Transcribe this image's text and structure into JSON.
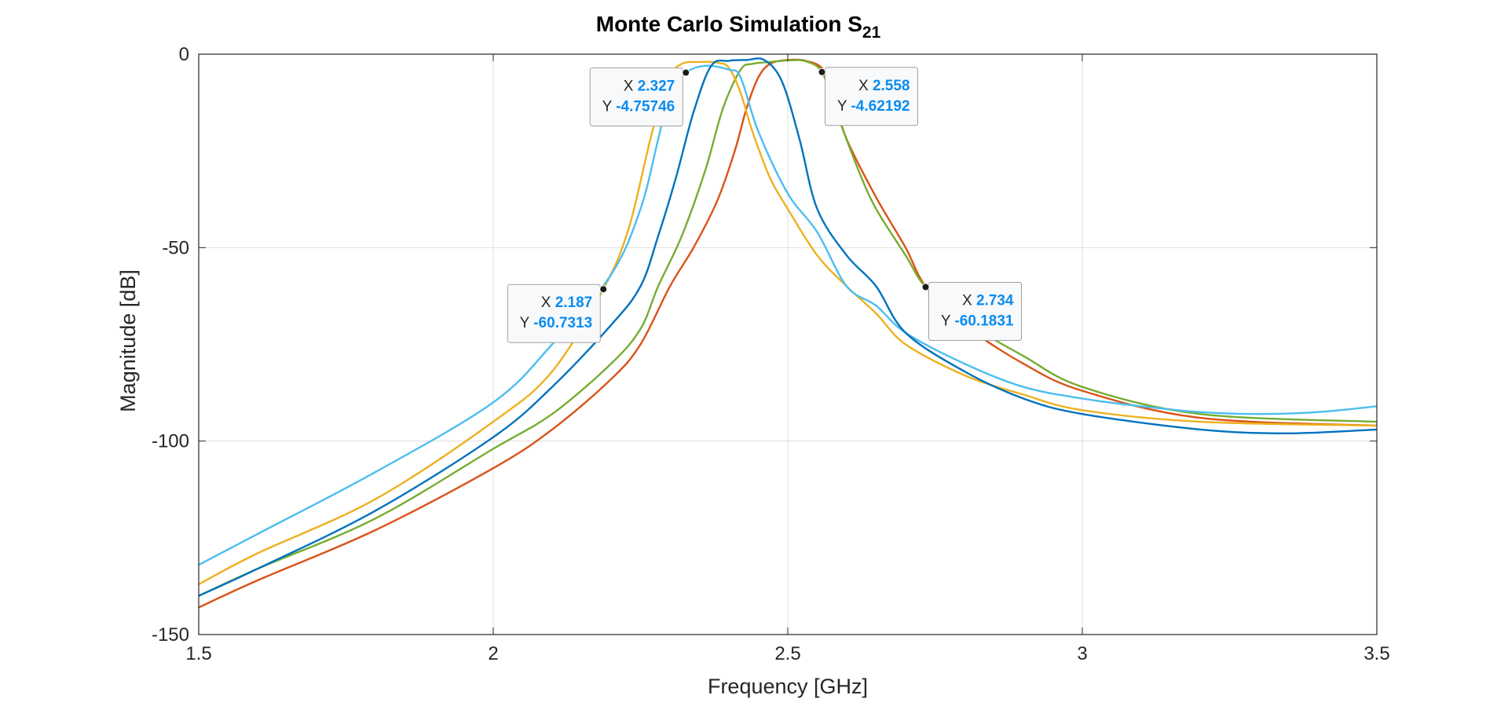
{
  "chart_data": {
    "type": "line",
    "title": "Monte Carlo Simulation S",
    "title_subscript": "21",
    "xlabel": "Frequency [GHz]",
    "ylabel": "Magnitude [dB]",
    "xlim": [
      1.5,
      3.5
    ],
    "ylim": [
      -150,
      0
    ],
    "xticks": [
      1.5,
      2,
      2.5,
      3,
      3.5
    ],
    "xtick_labels": [
      "1.5",
      "2",
      "2.5",
      "3",
      "3.5"
    ],
    "yticks": [
      0,
      -50,
      -100,
      -150
    ],
    "ytick_labels": [
      "0",
      "-50",
      "-100",
      "-150"
    ],
    "grid": true,
    "legend": "none",
    "series": [
      {
        "color": "#D95319",
        "x": [
          1.5,
          1.6,
          1.8,
          2.0,
          2.1,
          2.2,
          2.25,
          2.3,
          2.34,
          2.38,
          2.41,
          2.43,
          2.45,
          2.47,
          2.5,
          2.53,
          2.56,
          2.58,
          2.6,
          2.65,
          2.7,
          2.734,
          2.8,
          2.9,
          3.0,
          3.2,
          3.5
        ],
        "y": [
          -143,
          -136,
          -123,
          -107,
          -97,
          -84,
          -75,
          -60,
          -50,
          -38,
          -25,
          -14,
          -6,
          -2.5,
          -1.5,
          -1.7,
          -4,
          -12,
          -22,
          -37,
          -50,
          -60,
          -70,
          -80,
          -87,
          -94,
          -96
        ]
      },
      {
        "color": "#77AC30",
        "x": [
          1.5,
          1.6,
          1.8,
          2.0,
          2.1,
          2.2,
          2.25,
          2.28,
          2.32,
          2.36,
          2.39,
          2.42,
          2.44,
          2.47,
          2.5,
          2.53,
          2.558,
          2.58,
          2.62,
          2.65,
          2.7,
          2.734,
          2.8,
          2.9,
          3.0,
          3.2,
          3.5
        ],
        "y": [
          -140,
          -133,
          -120,
          -102,
          -93,
          -80,
          -71,
          -60,
          -47,
          -30,
          -14,
          -4,
          -2.5,
          -2,
          -1.6,
          -1.8,
          -4.6,
          -14,
          -30,
          -40,
          -52,
          -60.2,
          -69,
          -78,
          -86,
          -93,
          -95
        ]
      },
      {
        "color": "#EDB120",
        "x": [
          1.5,
          1.6,
          1.8,
          2.0,
          2.1,
          2.187,
          2.23,
          2.27,
          2.3,
          2.32,
          2.35,
          2.38,
          2.4,
          2.42,
          2.44,
          2.47,
          2.5,
          2.55,
          2.6,
          2.65,
          2.7,
          2.8,
          2.9,
          3.0,
          3.2,
          3.5
        ],
        "y": [
          -137,
          -129,
          -115,
          -95,
          -82,
          -60.7,
          -45,
          -20,
          -6,
          -2.5,
          -2,
          -2.2,
          -3.5,
          -10,
          -20,
          -32,
          -40,
          -52,
          -60,
          -67,
          -75,
          -83,
          -88,
          -92,
          -95,
          -96
        ]
      },
      {
        "color": "#4DBEEE",
        "x": [
          1.5,
          1.6,
          1.8,
          2.0,
          2.1,
          2.2,
          2.25,
          2.28,
          2.3,
          2.327,
          2.36,
          2.4,
          2.42,
          2.45,
          2.5,
          2.55,
          2.6,
          2.65,
          2.7,
          2.8,
          2.9,
          3.0,
          3.1,
          3.2,
          3.3,
          3.4,
          3.5
        ],
        "y": [
          -132,
          -124,
          -108,
          -90,
          -75,
          -57,
          -40,
          -22,
          -10,
          -4.8,
          -3,
          -4,
          -6,
          -20,
          -36,
          -46,
          -60,
          -65,
          -72,
          -80,
          -86,
          -89,
          -91,
          -92.5,
          -93,
          -92.5,
          -91
        ]
      },
      {
        "color": "#0072BD",
        "x": [
          1.5,
          1.6,
          1.8,
          2.0,
          2.1,
          2.2,
          2.25,
          2.28,
          2.31,
          2.34,
          2.37,
          2.4,
          2.43,
          2.46,
          2.49,
          2.52,
          2.55,
          2.6,
          2.65,
          2.7,
          2.8,
          2.9,
          3.0,
          3.2,
          3.35,
          3.5
        ],
        "y": [
          -140,
          -133,
          -118,
          -99,
          -86,
          -70,
          -60,
          -47,
          -32,
          -15,
          -3,
          -1.7,
          -1.5,
          -1.5,
          -7,
          -22,
          -40,
          -52,
          -60,
          -72,
          -82,
          -89,
          -93,
          -97,
          -98,
          -97
        ]
      }
    ],
    "datatips": [
      {
        "x_key": "X",
        "x_text": "2.327",
        "y_key": "Y",
        "y_text": "-4.75746",
        "x": 2.327,
        "y": -4.75746,
        "side": "left"
      },
      {
        "x_key": "X",
        "x_text": "2.558",
        "y_key": "Y",
        "y_text": "-4.62192",
        "x": 2.558,
        "y": -4.62192,
        "side": "right"
      },
      {
        "x_key": "X",
        "x_text": "2.187",
        "y_key": "Y",
        "y_text": "-60.7313",
        "x": 2.187,
        "y": -60.7313,
        "side": "left"
      },
      {
        "x_key": "X",
        "x_text": "2.734",
        "y_key": "Y",
        "y_text": "-60.1831",
        "x": 2.734,
        "y": -60.1831,
        "side": "right"
      }
    ],
    "colors": {
      "axis": "#262626",
      "grid": "#DFDFDF",
      "datatip_value": "#0A8CF0",
      "datatip_border": "#A0A0A0",
      "datatip_bg": "#F8F9FB"
    }
  }
}
